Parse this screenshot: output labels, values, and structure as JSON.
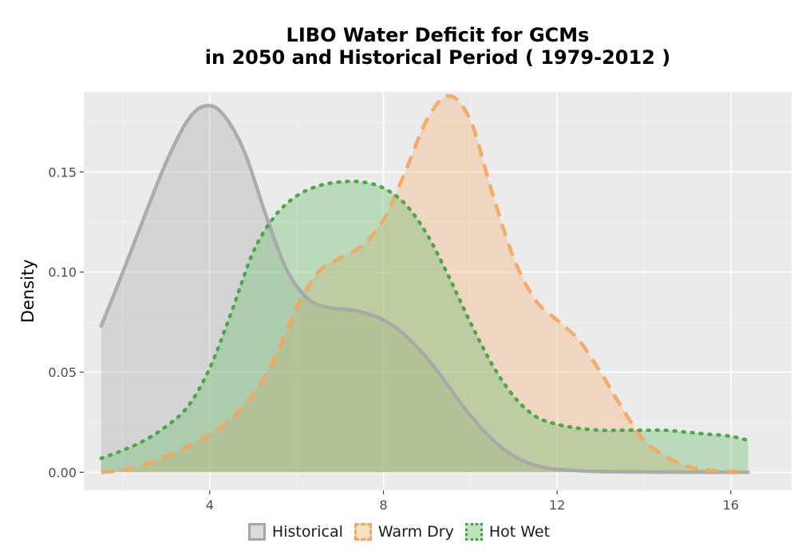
{
  "chart_data": {
    "type": "area",
    "title_lines": [
      "LIBO  Water Deficit for GCMs",
      "in 2050 and Historical Period ( 1979-2012 )"
    ],
    "xlabel": "",
    "ylabel": "Density",
    "xlim": [
      1.1,
      17.4
    ],
    "ylim": [
      -0.009,
      0.19
    ],
    "x_ticks": [
      4,
      8,
      12,
      16
    ],
    "x_tick_labels": [
      "4",
      "8",
      "12",
      "16"
    ],
    "y_ticks": [
      0.0,
      0.05,
      0.1,
      0.15
    ],
    "y_tick_labels": [
      "0.00",
      "0.05",
      "0.10",
      "0.15"
    ],
    "grid": true,
    "legend_position": "bottom",
    "series": [
      {
        "name": "Historical",
        "line_color": "#a6a6a6",
        "fill_color": "#a6a6a6",
        "line_style": "solid",
        "x": [
          1.5,
          2.0,
          2.5,
          3.0,
          3.5,
          3.9,
          4.3,
          4.8,
          5.3,
          5.8,
          6.3,
          6.8,
          7.3,
          7.8,
          8.3,
          8.8,
          9.3,
          9.8,
          10.3,
          10.8,
          11.3,
          11.8,
          12.3,
          12.8,
          13.5,
          14.5,
          15.5,
          16.4
        ],
        "y": [
          0.073,
          0.1,
          0.128,
          0.155,
          0.176,
          0.183,
          0.179,
          0.16,
          0.128,
          0.1,
          0.086,
          0.082,
          0.081,
          0.078,
          0.072,
          0.062,
          0.049,
          0.034,
          0.021,
          0.011,
          0.005,
          0.002,
          0.001,
          0.0005,
          0.0002,
          0.0001,
          0.0,
          0.0
        ]
      },
      {
        "name": "Warm Dry",
        "line_color": "#f6a55c",
        "fill_color": "#f6a55c",
        "line_style": "dashed",
        "x": [
          1.5,
          2.0,
          2.5,
          3.0,
          3.5,
          4.0,
          4.5,
          5.0,
          5.5,
          6.0,
          6.5,
          7.0,
          7.5,
          8.0,
          8.5,
          9.0,
          9.5,
          10.0,
          10.5,
          11.0,
          11.5,
          12.0,
          12.5,
          13.0,
          13.5,
          14.0,
          14.5,
          15.0,
          15.5,
          16.0,
          16.4
        ],
        "y": [
          0.0,
          0.001,
          0.004,
          0.008,
          0.013,
          0.019,
          0.027,
          0.039,
          0.057,
          0.082,
          0.1,
          0.107,
          0.113,
          0.126,
          0.15,
          0.176,
          0.188,
          0.176,
          0.14,
          0.107,
          0.086,
          0.076,
          0.066,
          0.05,
          0.032,
          0.016,
          0.008,
          0.003,
          0.001,
          0.0003,
          0.0001
        ]
      },
      {
        "name": "Hot Wet",
        "line_color": "#3ca33c",
        "fill_color": "#6ebd6e",
        "line_style": "dotted",
        "x": [
          1.5,
          2.0,
          2.5,
          3.0,
          3.5,
          4.0,
          4.5,
          5.0,
          5.5,
          6.0,
          6.5,
          7.0,
          7.5,
          8.0,
          8.5,
          9.0,
          9.5,
          10.0,
          10.5,
          11.0,
          11.5,
          12.0,
          12.5,
          13.0,
          13.5,
          14.0,
          14.5,
          15.0,
          15.5,
          16.0,
          16.4
        ],
        "y": [
          0.007,
          0.011,
          0.016,
          0.023,
          0.033,
          0.052,
          0.08,
          0.11,
          0.128,
          0.138,
          0.143,
          0.145,
          0.145,
          0.142,
          0.134,
          0.119,
          0.098,
          0.075,
          0.054,
          0.038,
          0.028,
          0.024,
          0.022,
          0.021,
          0.021,
          0.021,
          0.021,
          0.02,
          0.019,
          0.018,
          0.016
        ]
      }
    ]
  }
}
